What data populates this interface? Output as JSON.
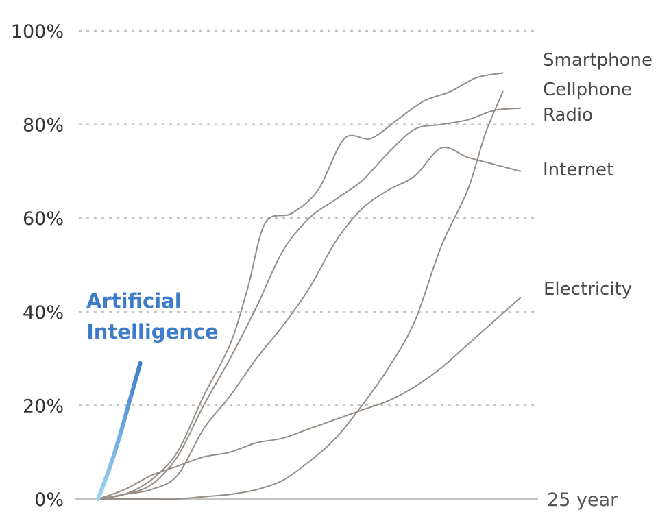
{
  "chart_data": {
    "type": "line",
    "xlabel": "",
    "ylabel": "",
    "x_end_label": "25 year",
    "xlim": [
      0,
      25
    ],
    "ylim": [
      0,
      100
    ],
    "y_ticks": [
      {
        "value": 0,
        "label": "0%"
      },
      {
        "value": 20,
        "label": "20%"
      },
      {
        "value": 40,
        "label": "40%"
      },
      {
        "value": 60,
        "label": "60%"
      },
      {
        "value": 80,
        "label": "80%"
      },
      {
        "value": 100,
        "label": "100%"
      }
    ],
    "grid": true,
    "colors": {
      "series": "#958d86",
      "ai_start": "#9fd4f0",
      "ai_end": "#3d7cc9",
      "grid": "#c4c4c4"
    },
    "series": [
      {
        "name": "Smartphone",
        "label_lines": [
          "Smartphone"
        ],
        "x": [
          0,
          1.5,
          3,
          4.5,
          6,
          7.5,
          8.5,
          9.5,
          11,
          12.5,
          14,
          15.5,
          17,
          18.5,
          20,
          21.5,
          23
        ],
        "y": [
          0,
          1,
          4,
          10,
          22,
          33,
          45,
          59,
          61,
          66,
          77,
          77,
          81,
          85,
          87,
          90,
          91
        ]
      },
      {
        "name": "Cellphone",
        "label_lines": [
          "Cellphone"
        ],
        "x": [
          0,
          1.5,
          3,
          4.5,
          6,
          7.5,
          9,
          10.5,
          12,
          13.5,
          15,
          16.5,
          18,
          19.5,
          21,
          22,
          23
        ],
        "y": [
          0,
          0,
          0,
          0,
          0.5,
          1,
          2,
          4,
          8,
          13,
          20,
          28,
          38,
          54,
          66,
          78,
          87
        ]
      },
      {
        "name": "Radio",
        "label_lines": [
          "Radio"
        ],
        "x": [
          0,
          1.5,
          3,
          4.5,
          6,
          7.5,
          9,
          10.5,
          12,
          13.5,
          15,
          16.5,
          18,
          19.5,
          21,
          22.5,
          24
        ],
        "y": [
          0,
          1,
          3,
          9,
          20,
          30,
          41,
          53,
          60,
          64,
          68,
          74,
          79,
          80,
          81,
          83,
          83.5
        ]
      },
      {
        "name": "Internet",
        "label_lines": [
          "Internet"
        ],
        "x": [
          0,
          1.5,
          3,
          4.5,
          6,
          7.5,
          9,
          10.5,
          12,
          13.5,
          15,
          16.5,
          18,
          19.5,
          21,
          22.5,
          24
        ],
        "y": [
          0,
          1,
          2,
          5,
          15,
          22,
          30,
          37,
          45,
          55,
          62,
          66,
          69,
          75,
          73,
          71.5,
          70
        ]
      },
      {
        "name": "Electricity",
        "label_lines": [
          "Electricity"
        ],
        "x": [
          0,
          1.5,
          3,
          4.5,
          6,
          7.5,
          9,
          10.5,
          12,
          13.5,
          15,
          16.5,
          18,
          19.5,
          21,
          22.5,
          24
        ],
        "y": [
          0,
          2,
          5,
          7,
          9,
          10,
          12,
          13,
          15,
          17,
          19,
          21,
          24,
          28,
          33,
          38,
          43
        ]
      }
    ],
    "labels": [
      {
        "series": "Smartphone",
        "lines": [
          "Smartphone"
        ]
      },
      {
        "series": "Cellphone",
        "lines": [
          "Cellphone"
        ]
      },
      {
        "series": "Radio",
        "lines": [
          "Radio"
        ]
      },
      {
        "series": "Internet",
        "lines": [
          "Internet"
        ]
      },
      {
        "series": "Electricity",
        "lines": [
          "Electricity"
        ]
      }
    ],
    "highlight": {
      "name": "Artificial Intelligence",
      "label_lines": [
        "Artificial",
        "Intelligence"
      ],
      "x": [
        0,
        0.6,
        1.2,
        1.8,
        2.4
      ],
      "y": [
        0,
        6,
        13,
        21,
        29
      ]
    }
  }
}
